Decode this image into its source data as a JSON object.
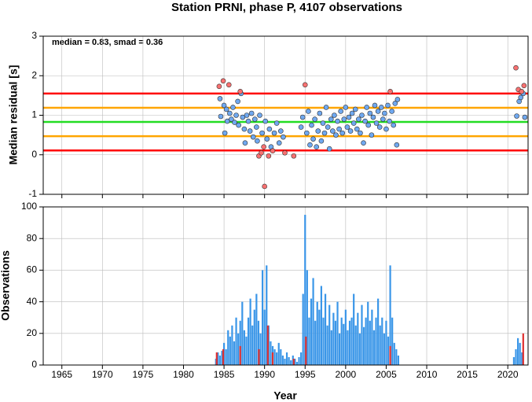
{
  "chart_data": [
    {
      "type": "scatter",
      "title": "Station PRNI, phase P, 4107 observations",
      "ylabel": "Median residual [s]",
      "annotation": "median = 0.83, smad = 0.36",
      "xlim": [
        1962.7,
        2022.5
      ],
      "ylim": [
        -1,
        3
      ],
      "yticks": [
        -1,
        0,
        1,
        2,
        3
      ],
      "xticks": [
        1965,
        1970,
        1975,
        1980,
        1985,
        1990,
        1995,
        2000,
        2005,
        2010,
        2015,
        2020
      ],
      "grid": true,
      "reference_lines": [
        {
          "value": 1.55,
          "color": "#ff0000"
        },
        {
          "value": 1.19,
          "color": "#ffa500"
        },
        {
          "value": 0.83,
          "color": "#22dd22"
        },
        {
          "value": 0.47,
          "color": "#ffa500"
        },
        {
          "value": 0.11,
          "color": "#ff0000"
        }
      ],
      "series": [
        {
          "color": "#6fa8f0",
          "x": [
            1984.5,
            1984.6,
            1985.0,
            1985.1,
            1985.3,
            1985.4,
            1985.7,
            1985.9,
            1986.1,
            1986.3,
            1986.5,
            1986.7,
            1986.8,
            1987.1,
            1987.3,
            1987.5,
            1987.6,
            1987.8,
            1988.0,
            1988.2,
            1988.4,
            1988.6,
            1988.8,
            1989.0,
            1989.1,
            1989.4,
            1989.7,
            1990.1,
            1990.3,
            1990.6,
            1990.8,
            1991.2,
            1991.5,
            1991.8,
            1992.0,
            1992.3,
            1994.5,
            1994.7,
            1995.2,
            1995.4,
            1995.6,
            1995.8,
            1996.0,
            1996.2,
            1996.4,
            1996.6,
            1996.8,
            1997.0,
            1997.2,
            1997.4,
            1997.6,
            1997.8,
            1998.0,
            1998.2,
            1998.4,
            1998.6,
            1998.8,
            1999.0,
            1999.2,
            1999.4,
            1999.6,
            1999.8,
            2000.0,
            2000.2,
            2000.4,
            2000.6,
            2000.8,
            2001.0,
            2001.2,
            2001.4,
            2001.6,
            2001.8,
            2002.0,
            2002.2,
            2002.4,
            2002.6,
            2002.8,
            2003.0,
            2003.2,
            2003.4,
            2003.6,
            2003.8,
            2004.0,
            2004.2,
            2004.4,
            2004.6,
            2004.8,
            2005.0,
            2005.2,
            2005.4,
            2005.7,
            2005.9,
            2006.1,
            2006.3,
            2006.4,
            2021.1,
            2021.4,
            2021.6,
            2021.9,
            2022.1
          ],
          "values": [
            1.42,
            0.97,
            1.25,
            0.55,
            1.15,
            0.85,
            1.05,
            0.9,
            1.2,
            0.82,
            1.0,
            1.35,
            0.75,
            1.55,
            0.95,
            0.65,
            0.3,
            1.0,
            0.85,
            0.6,
            1.05,
            0.45,
            0.9,
            0.7,
            0.35,
            1.0,
            0.55,
            0.85,
            0.4,
            0.65,
            0.2,
            0.55,
            0.8,
            0.3,
            0.6,
            0.45,
            0.7,
            0.95,
            0.55,
            1.1,
            0.25,
            0.75,
            0.4,
            0.9,
            0.2,
            0.6,
            1.05,
            0.35,
            0.8,
            0.55,
            1.2,
            0.7,
            0.15,
            0.9,
            0.6,
            1.0,
            0.5,
            0.85,
            0.65,
            1.1,
            0.55,
            0.9,
            1.2,
            0.7,
            0.95,
            0.6,
            1.05,
            0.8,
            1.15,
            0.65,
            0.9,
            0.55,
            1.0,
            0.3,
            0.85,
            1.2,
            0.75,
            1.05,
            0.5,
            0.95,
            1.25,
            0.8,
            1.1,
            0.7,
            1.2,
            0.9,
            1.05,
            0.65,
            1.25,
            0.85,
            1.1,
            0.75,
            1.3,
            0.25,
            1.4,
            0.98,
            1.35,
            1.45,
            1.55,
            0.95
          ]
        },
        {
          "color": "#f87171",
          "x": [
            1984.4,
            1984.9,
            1985.6,
            1987.0,
            1989.3,
            1989.6,
            1989.9,
            1990.0,
            1990.5,
            1991.0,
            1992.5,
            1993.6,
            1995.0,
            2005.5,
            2021.0,
            2021.3,
            2021.7,
            2022.0
          ],
          "values": [
            1.73,
            1.87,
            1.77,
            1.6,
            -0.03,
            0.05,
            0.2,
            -0.8,
            -0.03,
            0.1,
            0.05,
            -0.03,
            1.77,
            1.6,
            2.2,
            1.65,
            1.6,
            1.75
          ]
        }
      ]
    },
    {
      "type": "bar",
      "ylabel": "Observations",
      "xlabel": "Year",
      "xlim": [
        1962.7,
        2022.5
      ],
      "ylim": [
        0,
        100
      ],
      "yticks": [
        0,
        20,
        40,
        60,
        80,
        100
      ],
      "xticks": [
        1965,
        1970,
        1975,
        1980,
        1985,
        1990,
        1995,
        2000,
        2005,
        2010,
        2015,
        2020
      ],
      "grid": true,
      "series": [
        {
          "color": "#3a96e8",
          "x": [
            1984.0,
            1984.25,
            1984.5,
            1984.75,
            1985.0,
            1985.25,
            1985.5,
            1985.75,
            1986.0,
            1986.25,
            1986.5,
            1986.75,
            1987.0,
            1987.25,
            1987.5,
            1987.75,
            1988.0,
            1988.25,
            1988.5,
            1988.75,
            1989.0,
            1989.25,
            1989.5,
            1989.75,
            1990.0,
            1990.25,
            1990.5,
            1990.75,
            1991.0,
            1991.25,
            1991.5,
            1991.75,
            1992.0,
            1992.25,
            1992.5,
            1992.75,
            1993.0,
            1993.25,
            1993.5,
            1993.75,
            1994.0,
            1994.25,
            1994.5,
            1994.75,
            1995.0,
            1995.25,
            1995.5,
            1995.75,
            1996.0,
            1996.25,
            1996.5,
            1996.75,
            1997.0,
            1997.25,
            1997.5,
            1997.75,
            1998.0,
            1998.25,
            1998.5,
            1998.75,
            1999.0,
            1999.25,
            1999.5,
            1999.75,
            2000.0,
            2000.25,
            2000.5,
            2000.75,
            2001.0,
            2001.25,
            2001.5,
            2001.75,
            2002.0,
            2002.25,
            2002.5,
            2002.75,
            2003.0,
            2003.25,
            2003.5,
            2003.75,
            2004.0,
            2004.25,
            2004.5,
            2004.75,
            2005.0,
            2005.25,
            2005.5,
            2005.75,
            2006.0,
            2006.25,
            2006.5,
            2020.75,
            2021.0,
            2021.25,
            2021.5,
            2021.75
          ],
          "values": [
            4,
            8,
            6,
            9,
            14,
            10,
            22,
            18,
            25,
            15,
            30,
            20,
            28,
            40,
            22,
            18,
            30,
            42,
            25,
            35,
            45,
            28,
            20,
            60,
            35,
            63,
            25,
            15,
            12,
            10,
            8,
            14,
            10,
            6,
            4,
            8,
            5,
            3,
            6,
            4,
            2,
            5,
            8,
            45,
            95,
            60,
            30,
            42,
            55,
            28,
            40,
            35,
            50,
            30,
            45,
            25,
            38,
            22,
            33,
            28,
            40,
            20,
            30,
            26,
            35,
            22,
            28,
            30,
            45,
            25,
            33,
            20,
            38,
            24,
            30,
            40,
            28,
            35,
            22,
            30,
            42,
            25,
            30,
            20,
            28,
            18,
            63,
            30,
            14,
            10,
            6,
            5,
            10,
            17,
            14,
            8
          ]
        },
        {
          "color": "#e03030",
          "x": [
            1984.1,
            1984.9,
            1987.0,
            1989.3,
            1990.4,
            1991.0,
            1993.6,
            1995.1,
            2005.5,
            2021.9
          ],
          "values": [
            8,
            10,
            12,
            10,
            25,
            8,
            4,
            18,
            12,
            20
          ]
        }
      ]
    }
  ]
}
